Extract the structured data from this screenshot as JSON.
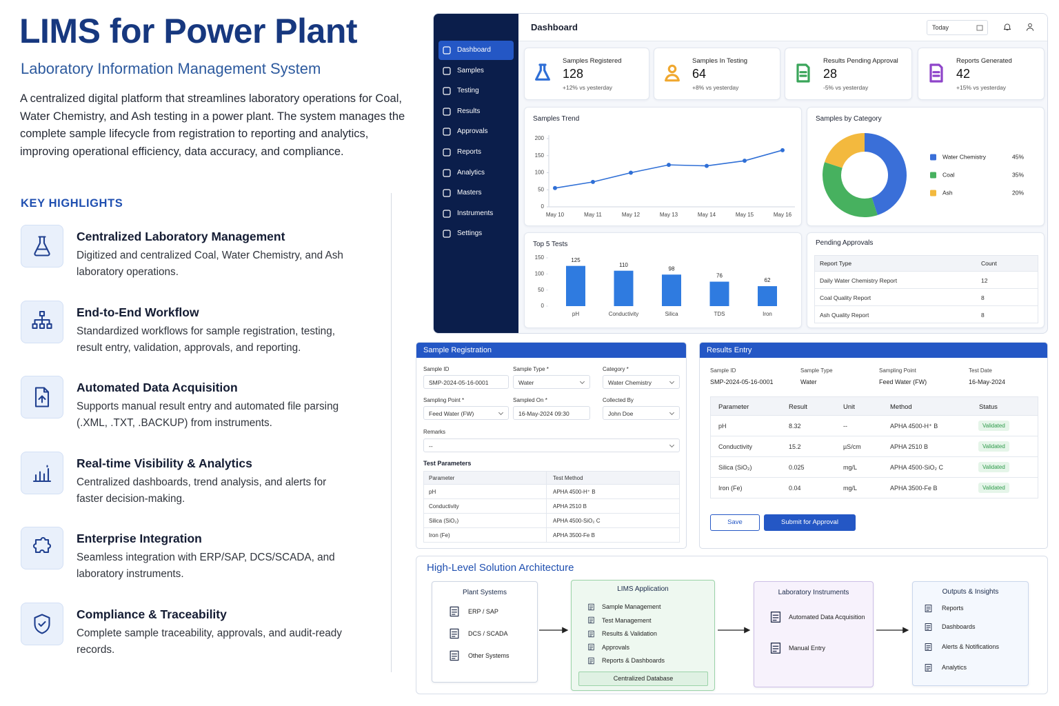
{
  "header": {
    "title": "LIMS for Power Plant",
    "subtitle": "Laboratory Information Management System",
    "description": "A centralized digital platform that streamlines laboratory operations for Coal, Water Chemistry, and Ash testing in a power plant. The system manages the complete sample lifecycle from registration to reporting and analytics, improving operational efficiency, data accuracy, and compliance."
  },
  "highlights": {
    "heading": "KEY HIGHLIGHTS",
    "items": [
      {
        "title": "Centralized Laboratory Management",
        "text": "Digitized and centralized Coal, Water Chemistry, and Ash laboratory operations."
      },
      {
        "title": "End-to-End Workflow",
        "text": "Standardized workflows for sample registration, testing, result entry, validation, approvals, and reporting."
      },
      {
        "title": "Automated Data Acquisition",
        "text": "Supports manual result entry and automated file parsing (.XML, .TXT, .BACKUP) from instruments."
      },
      {
        "title": "Real-time Visibility & Analytics",
        "text": "Centralized dashboards, trend analysis, and alerts for faster decision-making."
      },
      {
        "title": "Enterprise Integration",
        "text": "Seamless integration with ERP/SAP, DCS/SCADA, and laboratory instruments."
      },
      {
        "title": "Compliance & Traceability",
        "text": "Complete sample traceability, approvals, and audit-ready records."
      }
    ]
  },
  "dashboard": {
    "sidebar": [
      "Dashboard",
      "Samples",
      "Testing",
      "Results",
      "Approvals",
      "Reports",
      "Analytics",
      "Masters",
      "Instruments",
      "Settings"
    ],
    "title": "Dashboard",
    "date_filter": "Today",
    "kpis": [
      {
        "label": "Samples Registered",
        "value": 128,
        "change": "+12% vs yesterday"
      },
      {
        "label": "Samples In Testing",
        "value": 64,
        "change": "+8% vs yesterday"
      },
      {
        "label": "Results Pending Approval",
        "value": 28,
        "change": "-5% vs yesterday"
      },
      {
        "label": "Reports Generated",
        "value": 42,
        "change": "+15% vs yesterday"
      }
    ],
    "pending_approvals": {
      "title": "Pending Approvals",
      "columns": [
        "Report Type",
        "Count"
      ],
      "rows": [
        [
          "Daily Water Chemistry Report",
          12
        ],
        [
          "Coal Quality Report",
          8
        ],
        [
          "Ash Quality Report",
          8
        ]
      ]
    }
  },
  "chart_data": [
    {
      "type": "line",
      "title": "Samples Trend",
      "categories": [
        "May 10",
        "May 11",
        "May 12",
        "May 13",
        "May 14",
        "May 15",
        "May 16"
      ],
      "values": [
        55,
        73,
        100,
        123,
        120,
        135,
        166
      ],
      "color": "#2f6fd6",
      "ylim": [
        0,
        200
      ],
      "yticks": [
        0,
        50,
        100,
        150,
        200
      ],
      "grid": false
    },
    {
      "type": "pie",
      "title": "Samples by Category",
      "donut": true,
      "legend": "right",
      "categories": [
        "Water Chemistry",
        "Coal",
        "Ash"
      ],
      "values": [
        45,
        35,
        20
      ],
      "value_labels": [
        "45%",
        "35%",
        "20%"
      ],
      "colors": [
        "#3a6fd8",
        "#47b15f",
        "#f3b93e"
      ]
    },
    {
      "type": "bar",
      "title": "Top 5 Tests",
      "categories": [
        "pH",
        "Conductivity",
        "Silica",
        "TDS",
        "Iron"
      ],
      "values": [
        125,
        110,
        98,
        76,
        62
      ],
      "color": "#2f7be0",
      "ylim": [
        0,
        150
      ],
      "yticks": [
        0,
        50,
        100,
        150
      ],
      "grid": false
    }
  ],
  "sample_registration": {
    "title": "Sample Registration",
    "fields": [
      {
        "label": "Sample ID",
        "value": "SMP-2024-05-16-0001"
      },
      {
        "label": "Sample Type *",
        "value": "Water"
      },
      {
        "label": "Category *",
        "value": "Water Chemistry"
      },
      {
        "label": "Sampling Point *",
        "value": "Feed Water (FW)"
      },
      {
        "label": "Sampled On *",
        "value": "16-May-2024 09:30"
      },
      {
        "label": "Collected By",
        "value": "John Doe"
      }
    ],
    "remarks": {
      "label": "Remarks",
      "value": "--"
    },
    "test_parameters": {
      "title": "Test Parameters",
      "columns": [
        "Parameter",
        "Test Method"
      ],
      "rows": [
        [
          "pH",
          "APHA 4500-H⁺ B"
        ],
        [
          "Conductivity",
          "APHA 2510 B"
        ],
        [
          "Silica (SiO₂)",
          "APHA 4500-SiO₂ C"
        ],
        [
          "Iron (Fe)",
          "APHA 3500-Fe B"
        ]
      ]
    }
  },
  "results_entry": {
    "title": "Results Entry",
    "fields": [
      {
        "label": "Sample ID",
        "value": "SMP-2024-05-16-0001"
      },
      {
        "label": "Sample Type",
        "value": "Water"
      },
      {
        "label": "Sampling Point",
        "value": "Feed Water (FW)"
      },
      {
        "label": "Test Date",
        "value": "16-May-2024"
      }
    ],
    "columns": [
      "Parameter",
      "Result",
      "Unit",
      "Method",
      "Status"
    ],
    "rows": [
      [
        "pH",
        "8.32",
        "--",
        "APHA 4500-H⁺ B",
        "Validated"
      ],
      [
        "Conductivity",
        "15.2",
        "µS/cm",
        "APHA 2510 B",
        "Validated"
      ],
      [
        "Silica (SiO₂)",
        "0.025",
        "mg/L",
        "APHA 4500-SiO₂ C",
        "Validated"
      ],
      [
        "Iron (Fe)",
        "0.04",
        "mg/L",
        "APHA 3500-Fe B",
        "Validated"
      ]
    ],
    "buttons": [
      "Save",
      "Submit for Approval"
    ]
  },
  "architecture": {
    "title": "High-Level Solution Architecture",
    "blocks": [
      {
        "title": "Plant Systems",
        "items": [
          "ERP / SAP",
          "DCS / SCADA",
          "Other Systems"
        ]
      },
      {
        "title": "LIMS Application",
        "items": [
          "Sample Management",
          "Test Management",
          "Results & Validation",
          "Approvals",
          "Reports & Dashboards"
        ],
        "footer": "Centralized Database"
      },
      {
        "title": "Laboratory Instruments",
        "items": [
          "Automated Data Acquisition",
          "Manual Entry"
        ]
      },
      {
        "title": "Outputs & Insights",
        "items": [
          "Reports",
          "Dashboards",
          "Alerts & Notifications",
          "Analytics"
        ]
      }
    ]
  }
}
